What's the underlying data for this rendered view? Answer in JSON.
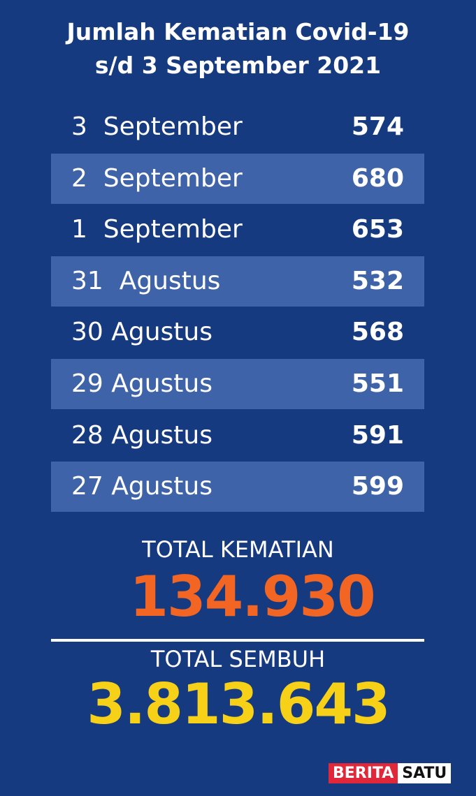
{
  "title_line1": "Jumlah Kematian Covid-19",
  "title_line2": "s/d 3 September 2021",
  "chart_data": {
    "type": "table",
    "title": "Jumlah Kematian Covid-19 s/d 3 September 2021",
    "rows": [
      {
        "date": "3  September",
        "value": "574"
      },
      {
        "date": "2  September",
        "value": "680"
      },
      {
        "date": "1  September",
        "value": "653"
      },
      {
        "date": "31  Agustus",
        "value": "532"
      },
      {
        "date": "30 Agustus",
        "value": "568"
      },
      {
        "date": "29 Agustus",
        "value": "551"
      },
      {
        "date": "28 Agustus",
        "value": "591"
      },
      {
        "date": "27 Agustus",
        "value": "599"
      }
    ]
  },
  "totals": {
    "deaths_label": "TOTAL KEMATIAN",
    "deaths_value": "134.930",
    "recovered_label": "TOTAL SEMBUH",
    "recovered_value": "3.813.643"
  },
  "logo": {
    "part1": "BERITA",
    "part2": "SATU"
  },
  "colors": {
    "background": "#163a7f",
    "stripe": "#3f63a8",
    "deaths": "#f26522",
    "recovered": "#f7d117",
    "logo_red": "#e0283a"
  }
}
